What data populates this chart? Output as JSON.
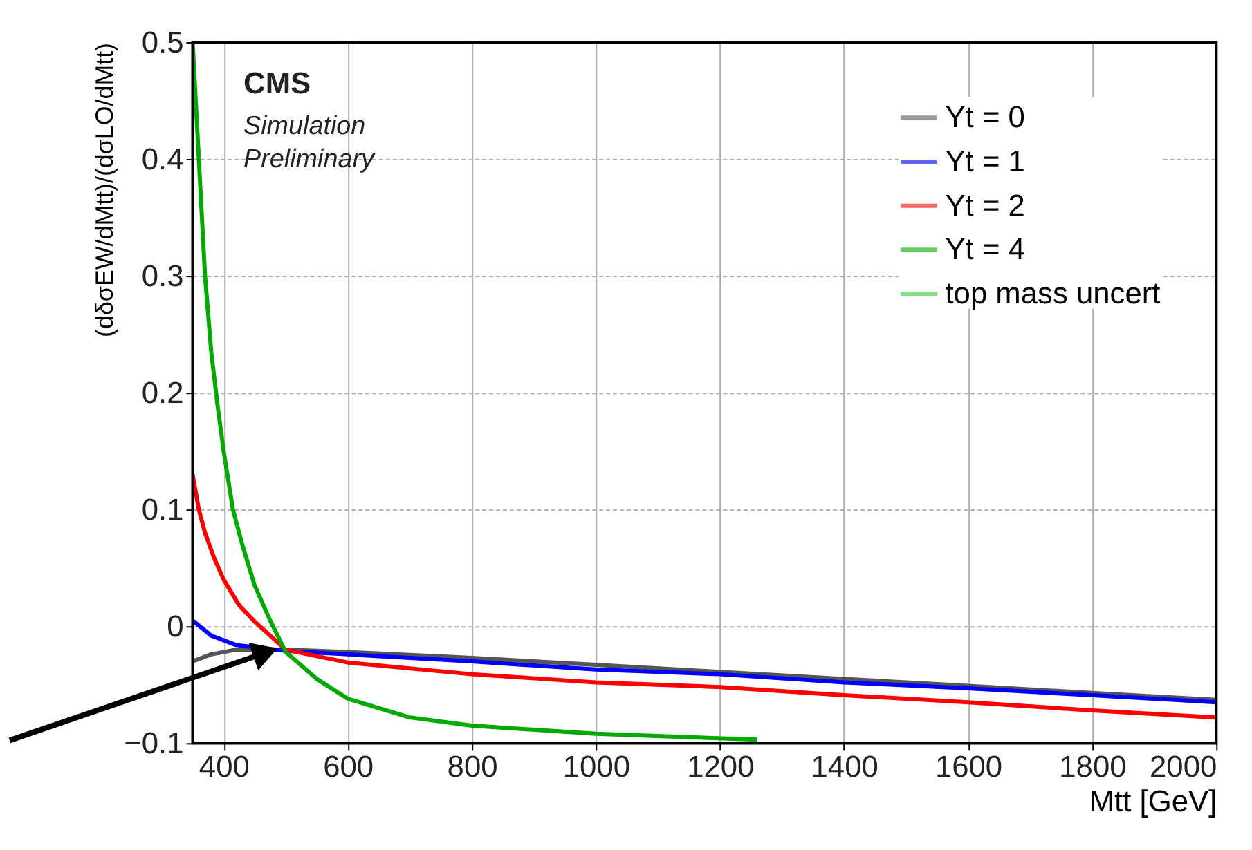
{
  "chart_data": {
    "type": "line",
    "xlabel": "Mtt [GeV]",
    "ylabel": "(dδσEW/dMtt)/(dσLO/dMtt)",
    "annotations": [
      "CMS",
      "Simulation",
      "Preliminary"
    ],
    "xlim": [
      350,
      2000
    ],
    "xticks": [
      400,
      600,
      800,
      1000,
      1200,
      1400,
      1600,
      1800,
      2000
    ],
    "ylim": [
      -0.1,
      0.5
    ],
    "yticks": [
      -0.1,
      0,
      0.1,
      0.2,
      0.3,
      0.4,
      0.5
    ],
    "grid": true,
    "legend": "top right",
    "line_style": "solid",
    "marker": "none",
    "series": [
      {
        "name": "Yt = 0",
        "color": "#555555",
        "x": [
          350,
          380,
          420,
          500,
          600,
          800,
          1000,
          1200,
          1400,
          1600,
          1800,
          2000
        ],
        "values": [
          -0.03,
          -0.024,
          -0.02,
          -0.02,
          -0.022,
          -0.027,
          -0.033,
          -0.039,
          -0.045,
          -0.051,
          -0.057,
          -0.063
        ]
      },
      {
        "name": "Yt = 1",
        "color": "#0000ff",
        "x": [
          350,
          380,
          420,
          500,
          600,
          800,
          1000,
          1200,
          1400,
          1600,
          1800,
          2000
        ],
        "values": [
          0.005,
          -0.008,
          -0.016,
          -0.021,
          -0.024,
          -0.03,
          -0.037,
          -0.041,
          -0.048,
          -0.053,
          -0.059,
          -0.065
        ]
      },
      {
        "name": "Yt = 2",
        "color": "#ff0000",
        "x": [
          350,
          360,
          370,
          385,
          400,
          425,
          450,
          500,
          600,
          800,
          1000,
          1200,
          1400,
          1600,
          1800,
          2000
        ],
        "values": [
          0.13,
          0.1,
          0.08,
          0.058,
          0.04,
          0.018,
          0.004,
          -0.02,
          -0.031,
          -0.041,
          -0.048,
          -0.052,
          -0.059,
          -0.065,
          -0.072,
          -0.078
        ]
      },
      {
        "name": "Yt = 4",
        "color": "#00aa00",
        "x": [
          350,
          360,
          370,
          380,
          390,
          400,
          415,
          430,
          450,
          475,
          500,
          550,
          600,
          700,
          800,
          1000,
          1260
        ],
        "values": [
          0.5,
          0.4,
          0.3,
          0.235,
          0.19,
          0.15,
          0.1,
          0.07,
          0.035,
          0.005,
          -0.022,
          -0.045,
          -0.062,
          -0.078,
          -0.085,
          -0.092,
          -0.097
        ]
      },
      {
        "name": "top mass uncert",
        "type": "area",
        "color": "#33cc33",
        "values": [
          null
        ]
      }
    ]
  }
}
